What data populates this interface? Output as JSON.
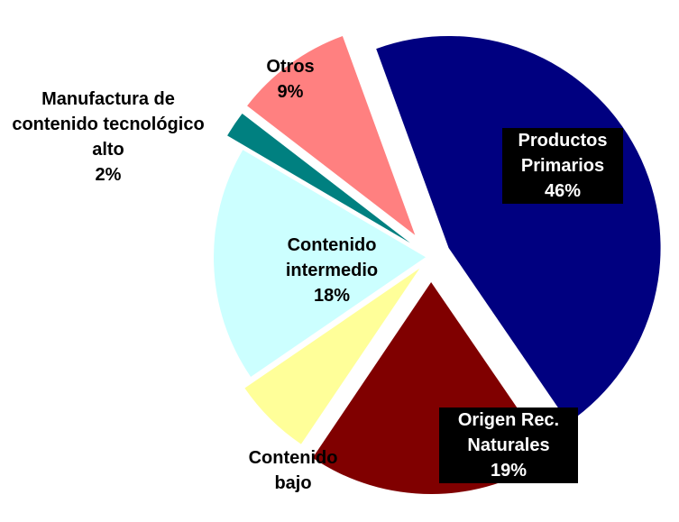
{
  "chart_data": {
    "type": "pie",
    "categories": [
      "Productos Primarios",
      "Origen Rec. Naturales",
      "Contenido bajo",
      "Contenido intermedio",
      "Manufactura de contenido tecnológico alto",
      "Otros"
    ],
    "values": [
      46,
      19,
      6,
      18,
      2,
      9
    ],
    "value_labels": [
      "46%",
      "19%",
      null,
      "18%",
      "2%",
      "9%"
    ],
    "colors": [
      "#000080",
      "#800000",
      "#ffff99",
      "#ccffff",
      "#008080",
      "#ff8080"
    ]
  }
}
